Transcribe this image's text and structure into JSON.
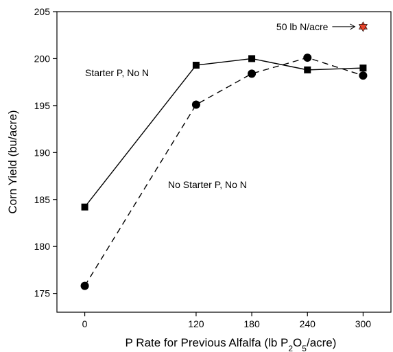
{
  "chart_data": {
    "type": "line",
    "xlabel": {
      "prefix": "P Rate for Previous Alfalfa (lb P",
      "sub1": "2",
      "mid": "O",
      "sub2": "5",
      "suffix": "/acre)"
    },
    "ylabel": "Corn Yield (bu/acre)",
    "xlim": [
      -30,
      330
    ],
    "ylim": [
      173,
      205
    ],
    "xticks": [
      0,
      120,
      180,
      240,
      300
    ],
    "yticks": [
      175,
      180,
      185,
      190,
      195,
      200,
      205
    ],
    "grid": false,
    "series": [
      {
        "name": "Starter P, No N",
        "marker": "square",
        "line": "solid",
        "x": [
          0,
          120,
          180,
          240,
          300
        ],
        "y": [
          184.2,
          199.3,
          200.0,
          198.8,
          199.0
        ]
      },
      {
        "name": "No Starter P, No N",
        "marker": "circle",
        "line": "dashed",
        "x": [
          0,
          120,
          180,
          240,
          300
        ],
        "y": [
          175.8,
          195.1,
          198.4,
          200.1,
          198.2
        ]
      }
    ],
    "extra_point": {
      "label": "50 lb N/acre",
      "x": 300,
      "y": 203.4,
      "marker": "star",
      "color": "#e8452c"
    }
  }
}
